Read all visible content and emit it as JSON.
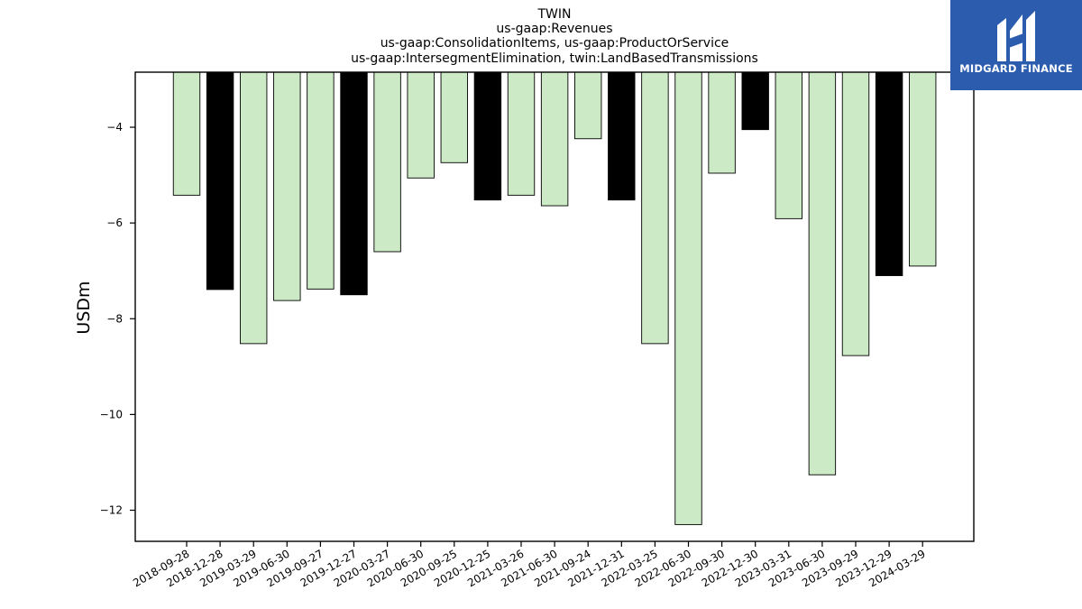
{
  "chart_data": {
    "type": "bar",
    "title_lines": [
      "TWIN",
      "us-gaap:Revenues",
      "us-gaap:ConsolidationItems, us-gaap:ProductOrService",
      "us-gaap:IntersegmentElimination, twin:LandBasedTransmissions"
    ],
    "ylabel": "USDm",
    "xlabel": "",
    "categories": [
      "2018-09-28",
      "2018-12-28",
      "2019-03-29",
      "2019-06-30",
      "2019-09-27",
      "2019-12-27",
      "2020-03-27",
      "2020-06-30",
      "2020-09-25",
      "2020-12-25",
      "2021-03-26",
      "2021-06-30",
      "2021-09-24",
      "2021-12-31",
      "2022-03-25",
      "2022-06-30",
      "2022-09-30",
      "2022-12-30",
      "2023-03-31",
      "2023-06-30",
      "2023-09-29",
      "2023-12-29",
      "2024-03-29"
    ],
    "values": [
      -5.42,
      -7.39,
      -8.52,
      -7.62,
      -7.38,
      -7.5,
      -6.6,
      -5.06,
      -4.74,
      -5.52,
      -5.42,
      -5.64,
      -4.24,
      -5.52,
      -8.52,
      -12.3,
      -4.96,
      -4.05,
      -5.91,
      -11.26,
      -8.77,
      -7.1,
      -6.9
    ],
    "highlight": [
      false,
      true,
      false,
      false,
      false,
      true,
      false,
      false,
      false,
      true,
      false,
      false,
      false,
      true,
      false,
      false,
      false,
      true,
      false,
      false,
      false,
      true,
      false
    ],
    "bar_color": "#cdeac6",
    "highlight_color": "#000000",
    "edge_color": "#000000",
    "ylim": [
      -12.65,
      -2.85
    ],
    "yticks": [
      -4,
      -6,
      -8,
      -10,
      -12
    ],
    "grid": false,
    "legend": "none"
  },
  "logo": {
    "text": "MIDGARD FINANCE",
    "background": "#2b5cae"
  }
}
